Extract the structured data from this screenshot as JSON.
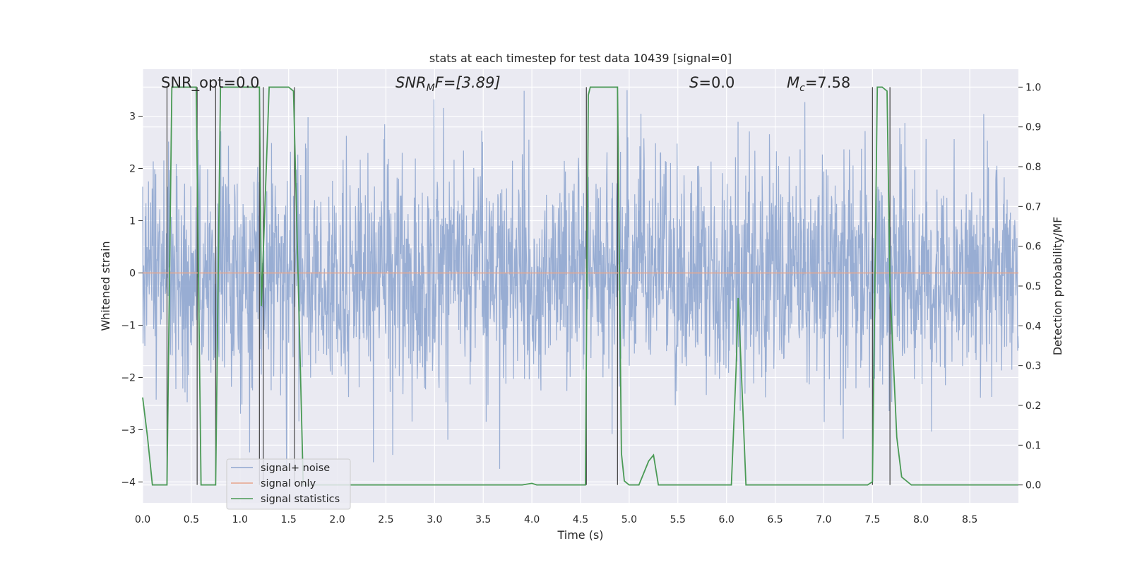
{
  "chart_data": {
    "type": "line",
    "title": "stats at each timestep for test data 10439 [signal=0]",
    "xlabel": "Time (s)",
    "ylabel": "Whitened strain",
    "y2label": "Detection probability/MF",
    "xlim": [
      0.0,
      9.0
    ],
    "ylim": [
      -4.4,
      3.9
    ],
    "y2lim": [
      -0.045,
      1.045
    ],
    "x_ticks": [
      "0.0",
      "0.5",
      "1.0",
      "1.5",
      "2.0",
      "2.5",
      "3.0",
      "3.5",
      "4.0",
      "4.5",
      "5.0",
      "5.5",
      "6.0",
      "6.5",
      "7.0",
      "7.5",
      "8.0",
      "8.5"
    ],
    "y_ticks": [
      "3",
      "2",
      "1",
      "0",
      "−1",
      "−2",
      "−3",
      "−4"
    ],
    "y2_ticks": [
      "1.0",
      "0.9",
      "0.8",
      "0.7",
      "0.6",
      "0.5",
      "0.4",
      "0.3",
      "0.2",
      "0.1",
      "0.0"
    ],
    "grid": true,
    "legend_position": "lower-left",
    "annotations": {
      "snr_opt": "SNR_opt=0.0",
      "snr_mf_base": "SNR",
      "snr_mf_sub": "M",
      "snr_mf_rest": "F=[3.89]",
      "s_sym": "S",
      "s_rest": "=0.0",
      "mc_base": "M",
      "mc_sub": "c",
      "mc_rest": "=7.58"
    },
    "series": [
      {
        "name": "signal+ noise",
        "color": "#8fa6cf",
        "description_values": "whitened noise, approx. zero mean, range about -3.7 to 3.5"
      },
      {
        "name": "signal only",
        "color": "#e8a58b",
        "values": [
          [
            0.0,
            0.0
          ],
          [
            9.0,
            0.0
          ]
        ]
      },
      {
        "name": "signal statistics",
        "color": "#4a9a55",
        "axis": "right",
        "points": [
          [
            0.0,
            0.22
          ],
          [
            0.05,
            0.12
          ],
          [
            0.1,
            0.0
          ],
          [
            0.2,
            0.0
          ],
          [
            0.25,
            0.0
          ],
          [
            0.3,
            1.0
          ],
          [
            0.4,
            1.0
          ],
          [
            0.5,
            1.0
          ],
          [
            0.55,
            1.0
          ],
          [
            0.6,
            0.0
          ],
          [
            0.65,
            0.0
          ],
          [
            0.7,
            0.0
          ],
          [
            0.75,
            0.0
          ],
          [
            0.8,
            1.0
          ],
          [
            0.85,
            1.0
          ],
          [
            0.9,
            1.0
          ],
          [
            1.0,
            1.0
          ],
          [
            1.1,
            1.0
          ],
          [
            1.2,
            1.0
          ],
          [
            1.22,
            0.45
          ],
          [
            1.3,
            1.0
          ],
          [
            1.35,
            1.0
          ],
          [
            1.4,
            1.0
          ],
          [
            1.5,
            1.0
          ],
          [
            1.55,
            0.99
          ],
          [
            1.6,
            0.5
          ],
          [
            1.65,
            0.0
          ],
          [
            1.7,
            0.0
          ],
          [
            2.0,
            0.0
          ],
          [
            2.5,
            0.0
          ],
          [
            3.0,
            0.0
          ],
          [
            3.5,
            0.0
          ],
          [
            3.9,
            0.0
          ],
          [
            4.0,
            0.004
          ],
          [
            4.05,
            0.0
          ],
          [
            4.5,
            0.0
          ],
          [
            4.55,
            0.0
          ],
          [
            4.58,
            0.98
          ],
          [
            4.6,
            1.0
          ],
          [
            4.7,
            1.0
          ],
          [
            4.8,
            1.0
          ],
          [
            4.88,
            1.0
          ],
          [
            4.92,
            0.08
          ],
          [
            4.95,
            0.01
          ],
          [
            5.0,
            0.0
          ],
          [
            5.1,
            0.0
          ],
          [
            5.15,
            0.03
          ],
          [
            5.2,
            0.06
          ],
          [
            5.25,
            0.075
          ],
          [
            5.3,
            0.0
          ],
          [
            5.5,
            0.0
          ],
          [
            6.0,
            0.0
          ],
          [
            6.05,
            0.0
          ],
          [
            6.1,
            0.3
          ],
          [
            6.12,
            0.47
          ],
          [
            6.15,
            0.3
          ],
          [
            6.2,
            0.0
          ],
          [
            6.5,
            0.0
          ],
          [
            7.0,
            0.0
          ],
          [
            7.45,
            0.0
          ],
          [
            7.5,
            0.008
          ],
          [
            7.55,
            1.0
          ],
          [
            7.6,
            1.0
          ],
          [
            7.65,
            0.99
          ],
          [
            7.68,
            0.5
          ],
          [
            7.75,
            0.12
          ],
          [
            7.8,
            0.02
          ],
          [
            7.9,
            0.0
          ],
          [
            8.0,
            0.0
          ],
          [
            8.5,
            0.0
          ],
          [
            9.0,
            0.0
          ]
        ]
      }
    ],
    "event_markers_s": [
      0.25,
      0.56,
      0.75,
      1.2,
      1.24,
      1.56,
      4.56,
      4.88,
      7.5,
      7.68
    ]
  }
}
